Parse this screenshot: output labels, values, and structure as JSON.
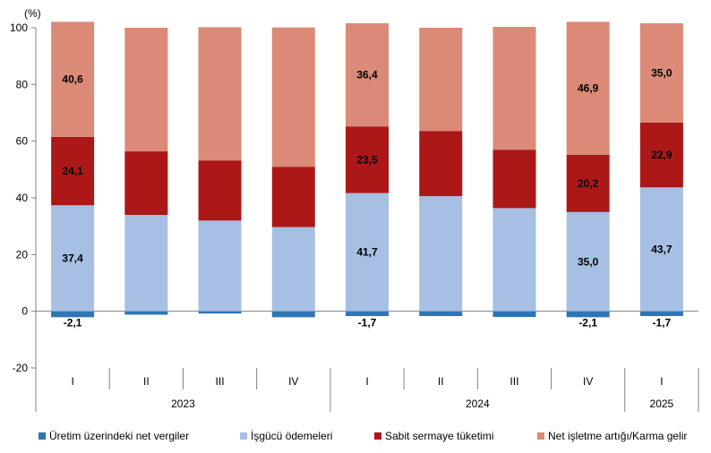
{
  "chart_data": {
    "type": "bar",
    "stacked": true,
    "unit_label": "(%)",
    "ylim": [
      -20,
      100
    ],
    "yticks": [
      -20,
      0,
      20,
      40,
      60,
      80,
      100
    ],
    "categories": [
      "I",
      "II",
      "III",
      "IV",
      "I",
      "II",
      "III",
      "IV",
      "I"
    ],
    "years": [
      {
        "label": "2023",
        "start": 0,
        "end": 3
      },
      {
        "label": "2024",
        "start": 4,
        "end": 7
      },
      {
        "label": "2025",
        "start": 8,
        "end": 8
      }
    ],
    "series": [
      {
        "name": "Üretim üzerindeki net vergiler",
        "color": "#2e75b6",
        "values": [
          -2.1,
          -1.2,
          -0.8,
          -2.1,
          -1.7,
          -1.7,
          -2.0,
          -2.1,
          -1.7
        ]
      },
      {
        "name": "İşgücü ödemeleri",
        "color": "#a6bfe2",
        "values": [
          37.4,
          34.0,
          32.0,
          29.7,
          41.7,
          40.6,
          36.4,
          35.0,
          43.7
        ]
      },
      {
        "name": "Sabit sermaye tüketimi",
        "color": "#ac1717",
        "values": [
          24.1,
          22.4,
          21.2,
          21.2,
          23.5,
          23.0,
          20.6,
          20.2,
          22.9
        ]
      },
      {
        "name": "Net işletme artığı/Karma gelir",
        "color": "#da8a76",
        "values": [
          40.6,
          43.6,
          47.0,
          49.2,
          36.4,
          36.4,
          43.3,
          46.9,
          35.0
        ]
      }
    ],
    "data_labels": [
      {
        "series": 0,
        "index": 0,
        "text": "-2,1"
      },
      {
        "series": 0,
        "index": 4,
        "text": "-1,7"
      },
      {
        "series": 0,
        "index": 7,
        "text": "-2,1"
      },
      {
        "series": 0,
        "index": 8,
        "text": "-1,7"
      },
      {
        "series": 1,
        "index": 0,
        "text": "37,4"
      },
      {
        "series": 1,
        "index": 4,
        "text": "41,7"
      },
      {
        "series": 1,
        "index": 7,
        "text": "35,0"
      },
      {
        "series": 1,
        "index": 8,
        "text": "43,7"
      },
      {
        "series": 2,
        "index": 0,
        "text": "24,1"
      },
      {
        "series": 2,
        "index": 4,
        "text": "23,5"
      },
      {
        "series": 2,
        "index": 7,
        "text": "20,2"
      },
      {
        "series": 2,
        "index": 8,
        "text": "22,9"
      },
      {
        "series": 3,
        "index": 0,
        "text": "40,6"
      },
      {
        "series": 3,
        "index": 4,
        "text": "36,4"
      },
      {
        "series": 3,
        "index": 7,
        "text": "46,9"
      },
      {
        "series": 3,
        "index": 8,
        "text": "35,0"
      }
    ],
    "legend_position": "bottom"
  }
}
